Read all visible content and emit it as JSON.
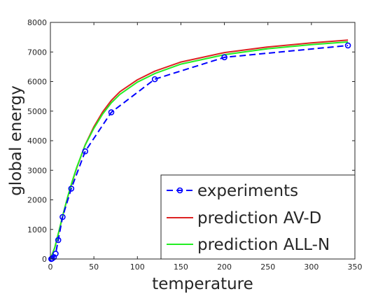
{
  "chart_data": {
    "type": "line",
    "xlabel": "temperature",
    "ylabel": "global energy",
    "xlim": [
      0,
      350
    ],
    "ylim": [
      0,
      8000
    ],
    "xticks": [
      0,
      50,
      100,
      150,
      200,
      250,
      300,
      350
    ],
    "yticks": [
      0,
      1000,
      2000,
      3000,
      4000,
      5000,
      6000,
      7000,
      8000
    ],
    "grid": false,
    "legend_position": "bottom-right",
    "series": [
      {
        "name": "experiments",
        "color": "#0000ff",
        "line_style": "dashed",
        "marker": "circle",
        "x": [
          1,
          2,
          4,
          6,
          9,
          14,
          24,
          40,
          70,
          120,
          200,
          342
        ],
        "y": [
          0,
          20,
          60,
          180,
          640,
          1420,
          2380,
          3640,
          4960,
          6080,
          6820,
          7220
        ]
      },
      {
        "name": "prediction AV-D",
        "color": "#dd2222",
        "line_style": "solid",
        "marker": "none",
        "x": [
          0,
          5,
          10,
          15,
          20,
          25,
          30,
          40,
          50,
          60,
          70,
          80,
          100,
          120,
          150,
          200,
          250,
          300,
          342
        ],
        "y": [
          0,
          380,
          950,
          1550,
          2110,
          2600,
          3060,
          3860,
          4470,
          4970,
          5360,
          5660,
          6060,
          6350,
          6660,
          6980,
          7170,
          7310,
          7400
        ]
      },
      {
        "name": "prediction ALL-N",
        "color": "#22ee22",
        "line_style": "solid",
        "marker": "none",
        "x": [
          0,
          5,
          10,
          15,
          20,
          25,
          30,
          40,
          50,
          60,
          70,
          80,
          100,
          120,
          150,
          200,
          250,
          300,
          342
        ],
        "y": [
          0,
          380,
          960,
          1560,
          2120,
          2620,
          3080,
          3850,
          4420,
          4900,
          5280,
          5570,
          5980,
          6270,
          6590,
          6910,
          7110,
          7250,
          7340
        ]
      }
    ]
  }
}
